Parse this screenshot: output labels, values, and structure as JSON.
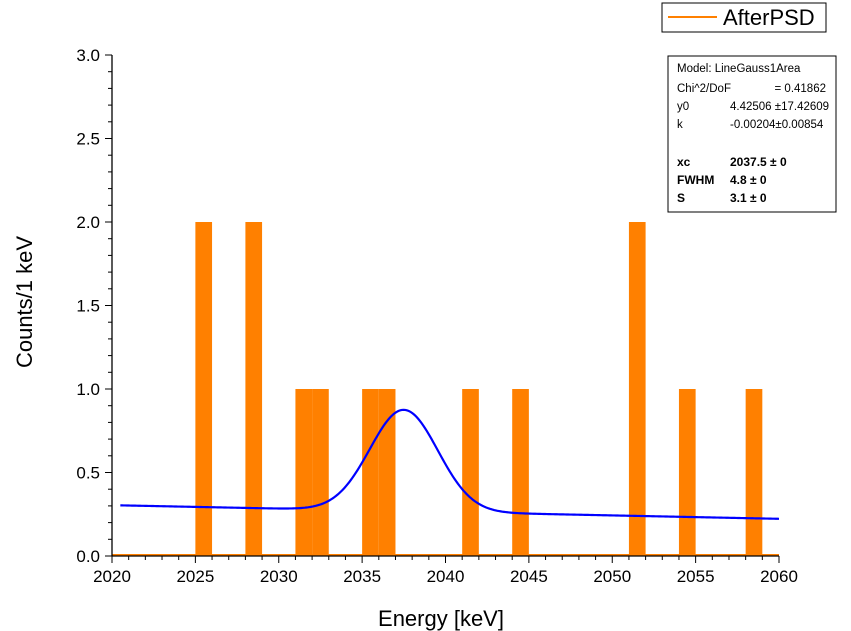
{
  "chart_data": {
    "type": "bar",
    "xlabel": "Energy [keV]",
    "ylabel": "Counts/1 keV",
    "xlim": [
      2020,
      2060
    ],
    "ylim": [
      0,
      3
    ],
    "x_ticks": [
      "2020",
      "2025",
      "2030",
      "2035",
      "2040",
      "2045",
      "2050",
      "2055",
      "2060"
    ],
    "y_ticks": [
      "0.0",
      "0.5",
      "1.0",
      "1.5",
      "2.0",
      "2.5",
      "3.0"
    ],
    "grid": false,
    "legend_position": "top-right",
    "series": [
      {
        "name": "AfterPSD",
        "type": "histogram",
        "color": "#ff8000",
        "bins": [
          {
            "x0": 2025,
            "x1": 2026,
            "y": 2
          },
          {
            "x0": 2028,
            "x1": 2029,
            "y": 2
          },
          {
            "x0": 2031,
            "x1": 2032,
            "y": 1
          },
          {
            "x0": 2032,
            "x1": 2033,
            "y": 1
          },
          {
            "x0": 2035,
            "x1": 2036,
            "y": 1
          },
          {
            "x0": 2036,
            "x1": 2037,
            "y": 1
          },
          {
            "x0": 2041,
            "x1": 2042,
            "y": 1
          },
          {
            "x0": 2044,
            "x1": 2045,
            "y": 1
          },
          {
            "x0": 2051,
            "x1": 2052,
            "y": 2
          },
          {
            "x0": 2054,
            "x1": 2055,
            "y": 1
          },
          {
            "x0": 2058,
            "x1": 2059,
            "y": 1
          }
        ]
      },
      {
        "type": "line",
        "color": "#0000ff",
        "model": {
          "y0": 4.42506,
          "k": -0.00204,
          "xc": 2037.5,
          "fwhm": 4.8,
          "area": 3.1,
          "x_from": 2020.5,
          "x_to": 2060
        }
      }
    ],
    "stats_box": {
      "lines": [
        {
          "label": "Model: LineGauss1Area",
          "value": "",
          "bold": false
        },
        {
          "label": "Chi^2/DoF",
          "value": "= 0.41862",
          "bold": false
        },
        {
          "label": "y0",
          "value": "4.42506 ±17.42609",
          "bold": false
        },
        {
          "label": "k",
          "value": "-0.00204±0.00854",
          "bold": false
        },
        {
          "label": "",
          "value": "",
          "bold": false
        },
        {
          "label": "xc",
          "value": "2037.5 ± 0",
          "bold": true
        },
        {
          "label": "FWHM",
          "value": "4.8 ± 0",
          "bold": true
        },
        {
          "label": "S",
          "value": "3.1 ± 0",
          "bold": true
        }
      ]
    }
  }
}
